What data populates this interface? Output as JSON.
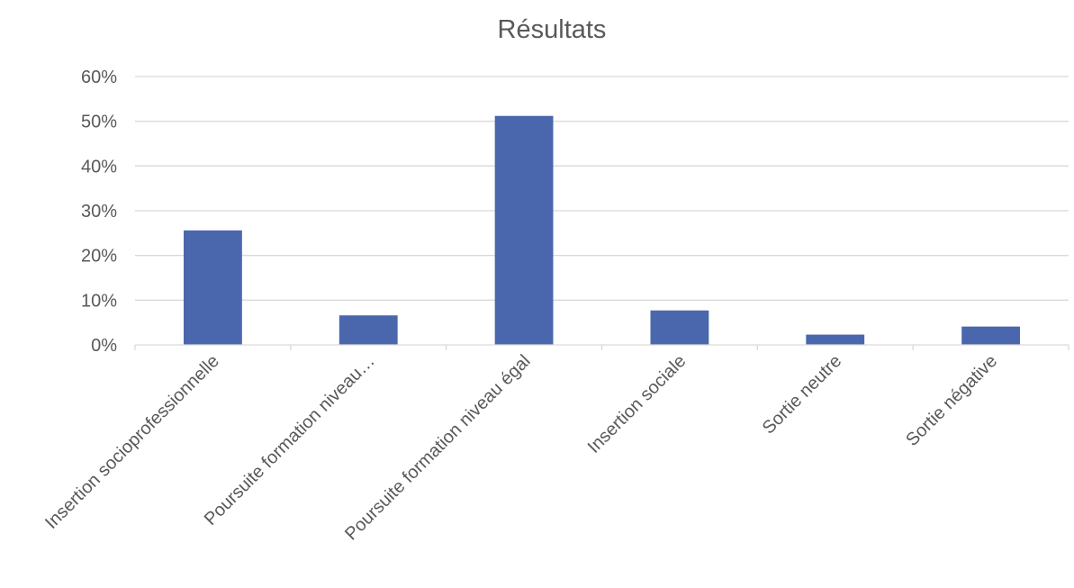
{
  "chart_data": {
    "type": "bar",
    "title": "Résultats",
    "xlabel": "",
    "ylabel": "",
    "categories": [
      "Insertion socioprofessionnelle",
      "Poursuite formation niveau…",
      "Poursuite formation niveau égal",
      "Insertion sociale",
      "Sortie neutre",
      "Sortie négative"
    ],
    "values": [
      0.256,
      0.066,
      0.512,
      0.077,
      0.023,
      0.041
    ],
    "ylim": [
      0,
      0.6
    ],
    "yticks": [
      0,
      0.1,
      0.2,
      0.3,
      0.4,
      0.5,
      0.6
    ],
    "ytick_labels": [
      "0%",
      "10%",
      "20%",
      "30%",
      "40%",
      "50%",
      "60%"
    ],
    "grid": true,
    "legend": "none",
    "bar_color": "#4a67ae",
    "grid_color": "#d9d9d9",
    "text_color": "#595959"
  }
}
